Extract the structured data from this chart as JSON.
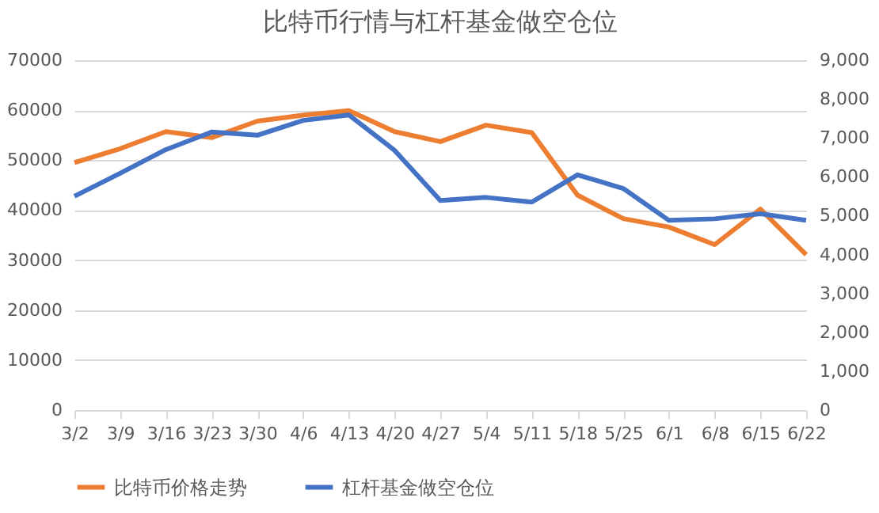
{
  "chart_data": {
    "type": "line",
    "title": "比特币行情与杠杆基金做空仓位",
    "categories": [
      "3/2",
      "3/9",
      "3/16",
      "3/23",
      "3/30",
      "4/6",
      "4/13",
      "4/20",
      "4/27",
      "5/4",
      "5/11",
      "5/18",
      "5/25",
      "6/1",
      "6/8",
      "6/15",
      "6/22"
    ],
    "series": [
      {
        "name": "比特币价格走势",
        "color": "#ed7d31",
        "values": [
          49500,
          52300,
          55700,
          54500,
          57800,
          59000,
          59900,
          55700,
          53700,
          57000,
          55500,
          43000,
          38300,
          36600,
          33100,
          40200,
          31100
        ]
      },
      {
        "name": "杠杆基金做空仓位",
        "color": "#4472c4",
        "axis": "y2",
        "values": [
          5500,
          6090,
          6700,
          7150,
          7070,
          7450,
          7590,
          6680,
          5390,
          5470,
          5350,
          6050,
          5700,
          4880,
          4920,
          5050,
          4880
        ]
      }
    ],
    "ylim": [
      0,
      70000
    ],
    "yticks": [
      0,
      10000,
      20000,
      30000,
      40000,
      50000,
      60000,
      70000
    ],
    "y2lim": [
      0,
      9000
    ],
    "y2ticks": [
      {
        "value": 0,
        "label": "0"
      },
      {
        "value": 1000,
        "label": "1,000"
      },
      {
        "value": 2000,
        "label": "2,000"
      },
      {
        "value": 3000,
        "label": "3,000"
      },
      {
        "value": 4000,
        "label": "4,000"
      },
      {
        "value": 5000,
        "label": "5,000"
      },
      {
        "value": 6000,
        "label": "6,000"
      },
      {
        "value": 7000,
        "label": "7,000"
      },
      {
        "value": 8000,
        "label": "8,000"
      },
      {
        "value": 9000,
        "label": "9,000"
      }
    ],
    "grid": "y",
    "legend": "bottom",
    "marker": "none",
    "line_style": "solid"
  }
}
